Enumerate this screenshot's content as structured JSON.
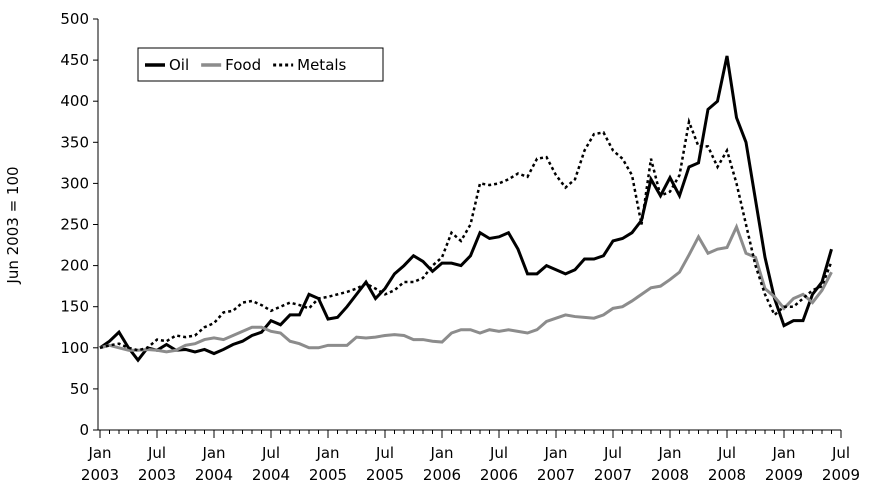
{
  "chart_data": {
    "type": "line",
    "y_label": "Jun 2003 = 100",
    "categories": [
      "Jan 2003",
      null,
      null,
      null,
      null,
      null,
      "Jul 2003",
      null,
      null,
      null,
      null,
      null,
      "Jan 2004",
      null,
      null,
      null,
      null,
      null,
      "Jul 2004",
      null,
      null,
      null,
      null,
      null,
      "Jan 2005",
      null,
      null,
      null,
      null,
      null,
      "Jul 2005",
      null,
      null,
      null,
      null,
      null,
      "Jan 2006",
      null,
      null,
      null,
      null,
      null,
      "Jul 2006",
      null,
      null,
      null,
      null,
      null,
      "Jan 2007",
      null,
      null,
      null,
      null,
      null,
      "Jul 2007",
      null,
      null,
      null,
      null,
      null,
      "Jan 2008",
      null,
      null,
      null,
      null,
      null,
      "Jul 2008",
      null,
      null,
      null,
      null,
      null,
      "Jan 2009",
      null,
      null,
      null,
      null,
      null,
      "Jul 2009"
    ],
    "series": [
      {
        "name": "Oil",
        "color": "#000000",
        "style": "solid",
        "width": 3,
        "values": [
          100,
          108,
          119,
          100,
          85,
          100,
          97,
          104,
          97,
          98,
          95,
          98,
          93,
          98,
          104,
          108,
          115,
          119,
          133,
          128,
          140,
          140,
          165,
          160,
          135,
          137,
          150,
          165,
          180,
          160,
          172,
          190,
          200,
          212,
          205,
          193,
          203,
          203,
          200,
          212,
          240,
          233,
          235,
          240,
          220,
          190,
          190,
          200,
          195,
          190,
          195,
          208,
          208,
          212,
          230,
          233,
          240,
          255,
          305,
          285,
          307,
          285,
          320,
          325,
          390,
          400,
          455,
          380,
          350,
          280,
          210,
          160,
          127,
          133,
          133,
          165,
          180,
          220,
          null
        ]
      },
      {
        "name": "Food",
        "color": "#8c8c8c",
        "style": "solid",
        "width": 3,
        "values": [
          100,
          103,
          100,
          97,
          97,
          98,
          97,
          95,
          97,
          103,
          105,
          110,
          112,
          110,
          115,
          120,
          125,
          125,
          120,
          118,
          108,
          105,
          100,
          100,
          103,
          103,
          103,
          113,
          112,
          113,
          115,
          116,
          115,
          110,
          110,
          108,
          107,
          118,
          122,
          122,
          118,
          122,
          120,
          122,
          120,
          118,
          122,
          132,
          136,
          140,
          138,
          137,
          136,
          140,
          148,
          150,
          157,
          165,
          173,
          175,
          183,
          192,
          213,
          235,
          215,
          220,
          222,
          247,
          215,
          210,
          172,
          162,
          148,
          160,
          165,
          155,
          170,
          192,
          null
        ]
      },
      {
        "name": "Metals",
        "color": "#000000",
        "style": "dotted",
        "width": 2.5,
        "values": [
          100,
          103,
          105,
          100,
          97,
          100,
          110,
          108,
          115,
          113,
          115,
          125,
          130,
          143,
          145,
          155,
          157,
          152,
          145,
          150,
          155,
          152,
          148,
          160,
          162,
          165,
          168,
          172,
          178,
          172,
          165,
          170,
          180,
          180,
          185,
          200,
          210,
          240,
          230,
          250,
          300,
          298,
          300,
          305,
          312,
          308,
          330,
          332,
          310,
          295,
          305,
          340,
          360,
          362,
          340,
          330,
          310,
          250,
          330,
          285,
          290,
          310,
          375,
          345,
          345,
          320,
          340,
          300,
          250,
          200,
          165,
          140,
          150,
          150,
          160,
          170,
          175,
          205,
          null
        ]
      }
    ],
    "ylim": [
      0,
      500
    ],
    "yticks": [
      0,
      50,
      100,
      150,
      200,
      250,
      300,
      350,
      400,
      450,
      500
    ],
    "grid": false,
    "legend": "upper-left"
  }
}
